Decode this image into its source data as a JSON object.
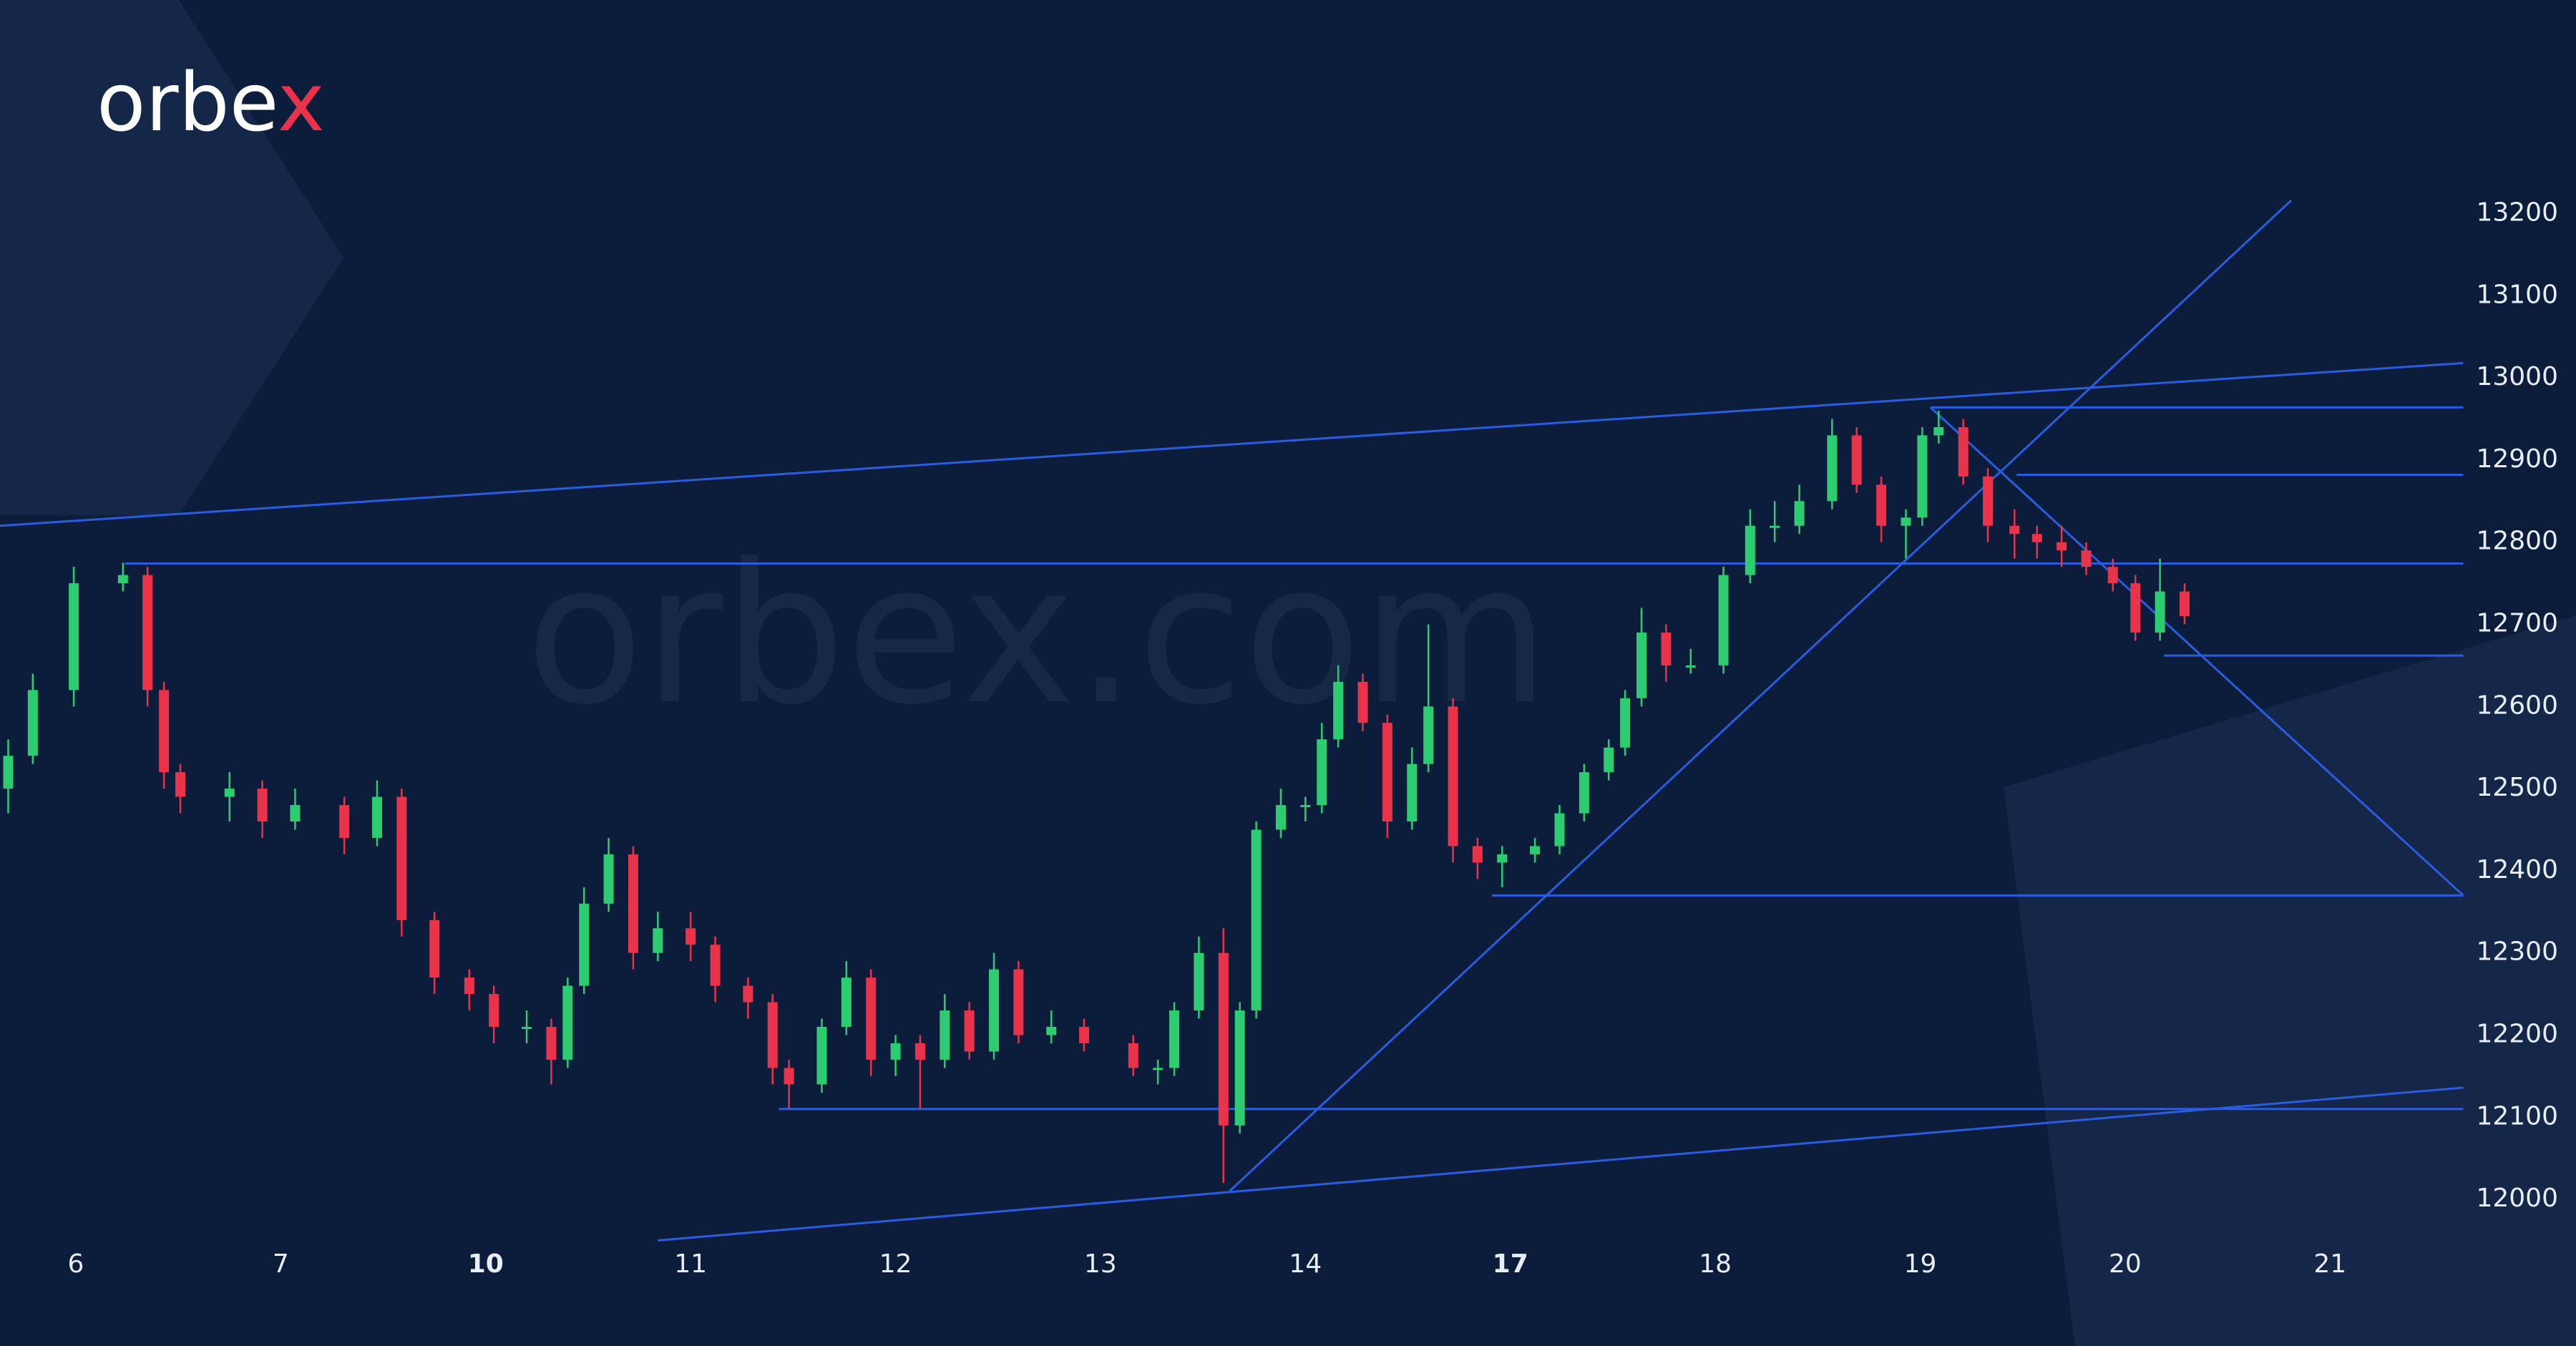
{
  "chart_data": {
    "type": "candlestick",
    "brand": {
      "text": "orbe",
      "accent": "x"
    },
    "watermark": "orbex.com",
    "background": "#0b1d3b",
    "up_color": "#2ecc71",
    "down_color": "#e8334a",
    "line_color": "#2b5ce0",
    "xlim": [
      -0.37,
      12.2
    ],
    "ylim": [
      11960,
      13460
    ],
    "xticks": [
      {
        "value": 0,
        "label": "6"
      },
      {
        "value": 1,
        "label": "7"
      },
      {
        "value": 2,
        "label": "10",
        "bold": true
      },
      {
        "value": 3,
        "label": "11"
      },
      {
        "value": 4,
        "label": "12"
      },
      {
        "value": 5,
        "label": "13"
      },
      {
        "value": 6,
        "label": "14"
      },
      {
        "value": 7,
        "label": "17",
        "bold": true
      },
      {
        "value": 8,
        "label": "18"
      },
      {
        "value": 9,
        "label": "19"
      },
      {
        "value": 10,
        "label": "20"
      },
      {
        "value": 11,
        "label": "21"
      }
    ],
    "yticks": [
      12000,
      12100,
      12200,
      12300,
      12400,
      12500,
      12600,
      12700,
      12800,
      12900,
      13000,
      13100,
      13200
    ],
    "x": [
      -0.33,
      -0.21,
      -0.01,
      0.23,
      0.35,
      0.43,
      0.51,
      0.75,
      0.91,
      1.07,
      1.31,
      1.47,
      1.59,
      1.75,
      1.92,
      2.04,
      2.2,
      2.32,
      2.4,
      2.48,
      2.6,
      2.72,
      2.84,
      3.0,
      3.12,
      3.28,
      3.4,
      3.48,
      3.64,
      3.76,
      3.88,
      4.0,
      4.12,
      4.24,
      4.36,
      4.48,
      4.6,
      4.76,
      4.92,
      5.16,
      5.28,
      5.36,
      5.48,
      5.6,
      5.68,
      5.76,
      5.88,
      6.0,
      6.08,
      6.16,
      6.28,
      6.4,
      6.52,
      6.6,
      6.72,
      6.84,
      6.96,
      7.12,
      7.24,
      7.36,
      7.48,
      7.56,
      7.64,
      7.76,
      7.88,
      8.04,
      8.17,
      8.29,
      8.41,
      8.57,
      8.69,
      8.81,
      8.93,
      9.01,
      9.09,
      9.21,
      9.33,
      9.46,
      9.57,
      9.69,
      9.81,
      9.94,
      10.05,
      10.17,
      10.29
    ],
    "ohlc": [
      [
        12500,
        12560,
        12470,
        12540
      ],
      [
        12540,
        12640,
        12530,
        12620
      ],
      [
        12620,
        12770,
        12600,
        12750
      ],
      [
        12750,
        12775,
        12740,
        12760
      ],
      [
        12760,
        12770,
        12600,
        12620
      ],
      [
        12620,
        12630,
        12500,
        12520
      ],
      [
        12520,
        12530,
        12470,
        12490
      ],
      [
        12490,
        12520,
        12460,
        12500
      ],
      [
        12500,
        12510,
        12440,
        12460
      ],
      [
        12460,
        12500,
        12450,
        12480
      ],
      [
        12480,
        12490,
        12420,
        12440
      ],
      [
        12440,
        12510,
        12430,
        12490
      ],
      [
        12490,
        12500,
        12320,
        12340
      ],
      [
        12340,
        12350,
        12250,
        12270
      ],
      [
        12270,
        12280,
        12230,
        12250
      ],
      [
        12250,
        12260,
        12190,
        12210
      ],
      [
        12210,
        12230,
        12190,
        12210
      ],
      [
        12210,
        12220,
        12140,
        12170
      ],
      [
        12170,
        12270,
        12160,
        12260
      ],
      [
        12260,
        12380,
        12250,
        12360
      ],
      [
        12360,
        12440,
        12350,
        12420
      ],
      [
        12420,
        12430,
        12280,
        12300
      ],
      [
        12300,
        12350,
        12290,
        12330
      ],
      [
        12330,
        12350,
        12290,
        12310
      ],
      [
        12310,
        12320,
        12240,
        12260
      ],
      [
        12260,
        12270,
        12220,
        12240
      ],
      [
        12240,
        12250,
        12140,
        12160
      ],
      [
        12160,
        12170,
        12110,
        12140
      ],
      [
        12140,
        12220,
        12130,
        12210
      ],
      [
        12210,
        12290,
        12200,
        12270
      ],
      [
        12270,
        12280,
        12150,
        12170
      ],
      [
        12170,
        12200,
        12150,
        12190
      ],
      [
        12190,
        12200,
        12110,
        12170
      ],
      [
        12170,
        12250,
        12160,
        12230
      ],
      [
        12230,
        12240,
        12170,
        12180
      ],
      [
        12180,
        12300,
        12170,
        12280
      ],
      [
        12280,
        12290,
        12190,
        12200
      ],
      [
        12200,
        12230,
        12190,
        12210
      ],
      [
        12210,
        12220,
        12180,
        12190
      ],
      [
        12190,
        12200,
        12150,
        12160
      ],
      [
        12160,
        12170,
        12140,
        12160
      ],
      [
        12160,
        12240,
        12150,
        12230
      ],
      [
        12230,
        12320,
        12220,
        12300
      ],
      [
        12300,
        12330,
        12020,
        12090
      ],
      [
        12090,
        12240,
        12080,
        12230
      ],
      [
        12230,
        12460,
        12220,
        12450
      ],
      [
        12450,
        12500,
        12440,
        12480
      ],
      [
        12480,
        12490,
        12460,
        12480
      ],
      [
        12480,
        12580,
        12470,
        12560
      ],
      [
        12560,
        12650,
        12550,
        12630
      ],
      [
        12630,
        12640,
        12570,
        12580
      ],
      [
        12580,
        12590,
        12440,
        12460
      ],
      [
        12460,
        12550,
        12450,
        12530
      ],
      [
        12530,
        12700,
        12520,
        12600
      ],
      [
        12600,
        12610,
        12410,
        12430
      ],
      [
        12430,
        12440,
        12390,
        12410
      ],
      [
        12410,
        12430,
        12380,
        12420
      ],
      [
        12420,
        12440,
        12410,
        12430
      ],
      [
        12430,
        12480,
        12420,
        12470
      ],
      [
        12470,
        12530,
        12460,
        12520
      ],
      [
        12520,
        12560,
        12510,
        12550
      ],
      [
        12550,
        12620,
        12540,
        12610
      ],
      [
        12610,
        12720,
        12600,
        12690
      ],
      [
        12690,
        12700,
        12630,
        12650
      ],
      [
        12650,
        12670,
        12640,
        12650
      ],
      [
        12650,
        12770,
        12640,
        12760
      ],
      [
        12760,
        12840,
        12750,
        12820
      ],
      [
        12820,
        12850,
        12800,
        12820
      ],
      [
        12820,
        12870,
        12810,
        12850
      ],
      [
        12850,
        12950,
        12840,
        12930
      ],
      [
        12930,
        12940,
        12860,
        12870
      ],
      [
        12870,
        12880,
        12800,
        12820
      ],
      [
        12820,
        12840,
        12780,
        12830
      ],
      [
        12830,
        12940,
        12820,
        12930
      ],
      [
        12930,
        12960,
        12920,
        12940
      ],
      [
        12940,
        12950,
        12870,
        12880
      ],
      [
        12880,
        12890,
        12800,
        12820
      ],
      [
        12820,
        12840,
        12780,
        12810
      ],
      [
        12810,
        12820,
        12780,
        12800
      ],
      [
        12800,
        12820,
        12770,
        12790
      ],
      [
        12790,
        12800,
        12760,
        12770
      ],
      [
        12770,
        12780,
        12740,
        12750
      ],
      [
        12750,
        12760,
        12680,
        12690
      ],
      [
        12690,
        12780,
        12680,
        12740
      ],
      [
        12740,
        12750,
        12700,
        12710
      ]
    ],
    "lines": [
      {
        "x": [
          -0.37,
          11.65
        ],
        "y": [
          12820,
          13018
        ]
      },
      {
        "x": [
          2.84,
          11.65
        ],
        "y": [
          11950,
          12136
        ]
      },
      {
        "x": [
          5.63,
          10.81
        ],
        "y": [
          12010,
          13216
        ]
      },
      {
        "x": [
          0.24,
          11.65
        ],
        "y": [
          12774,
          12774
        ]
      },
      {
        "x": [
          9.05,
          11.65
        ],
        "y": [
          12964,
          12964
        ]
      },
      {
        "x": [
          9.47,
          11.65
        ],
        "y": [
          12882,
          12882
        ]
      },
      {
        "x": [
          10.19,
          11.65
        ],
        "y": [
          12662,
          12662
        ]
      },
      {
        "x": [
          6.91,
          11.65
        ],
        "y": [
          12370,
          12370
        ]
      },
      {
        "x": [
          3.43,
          11.65
        ],
        "y": [
          12110,
          12110
        ]
      },
      {
        "x": [
          9.05,
          11.65
        ],
        "y": [
          12964,
          12370
        ]
      }
    ]
  }
}
